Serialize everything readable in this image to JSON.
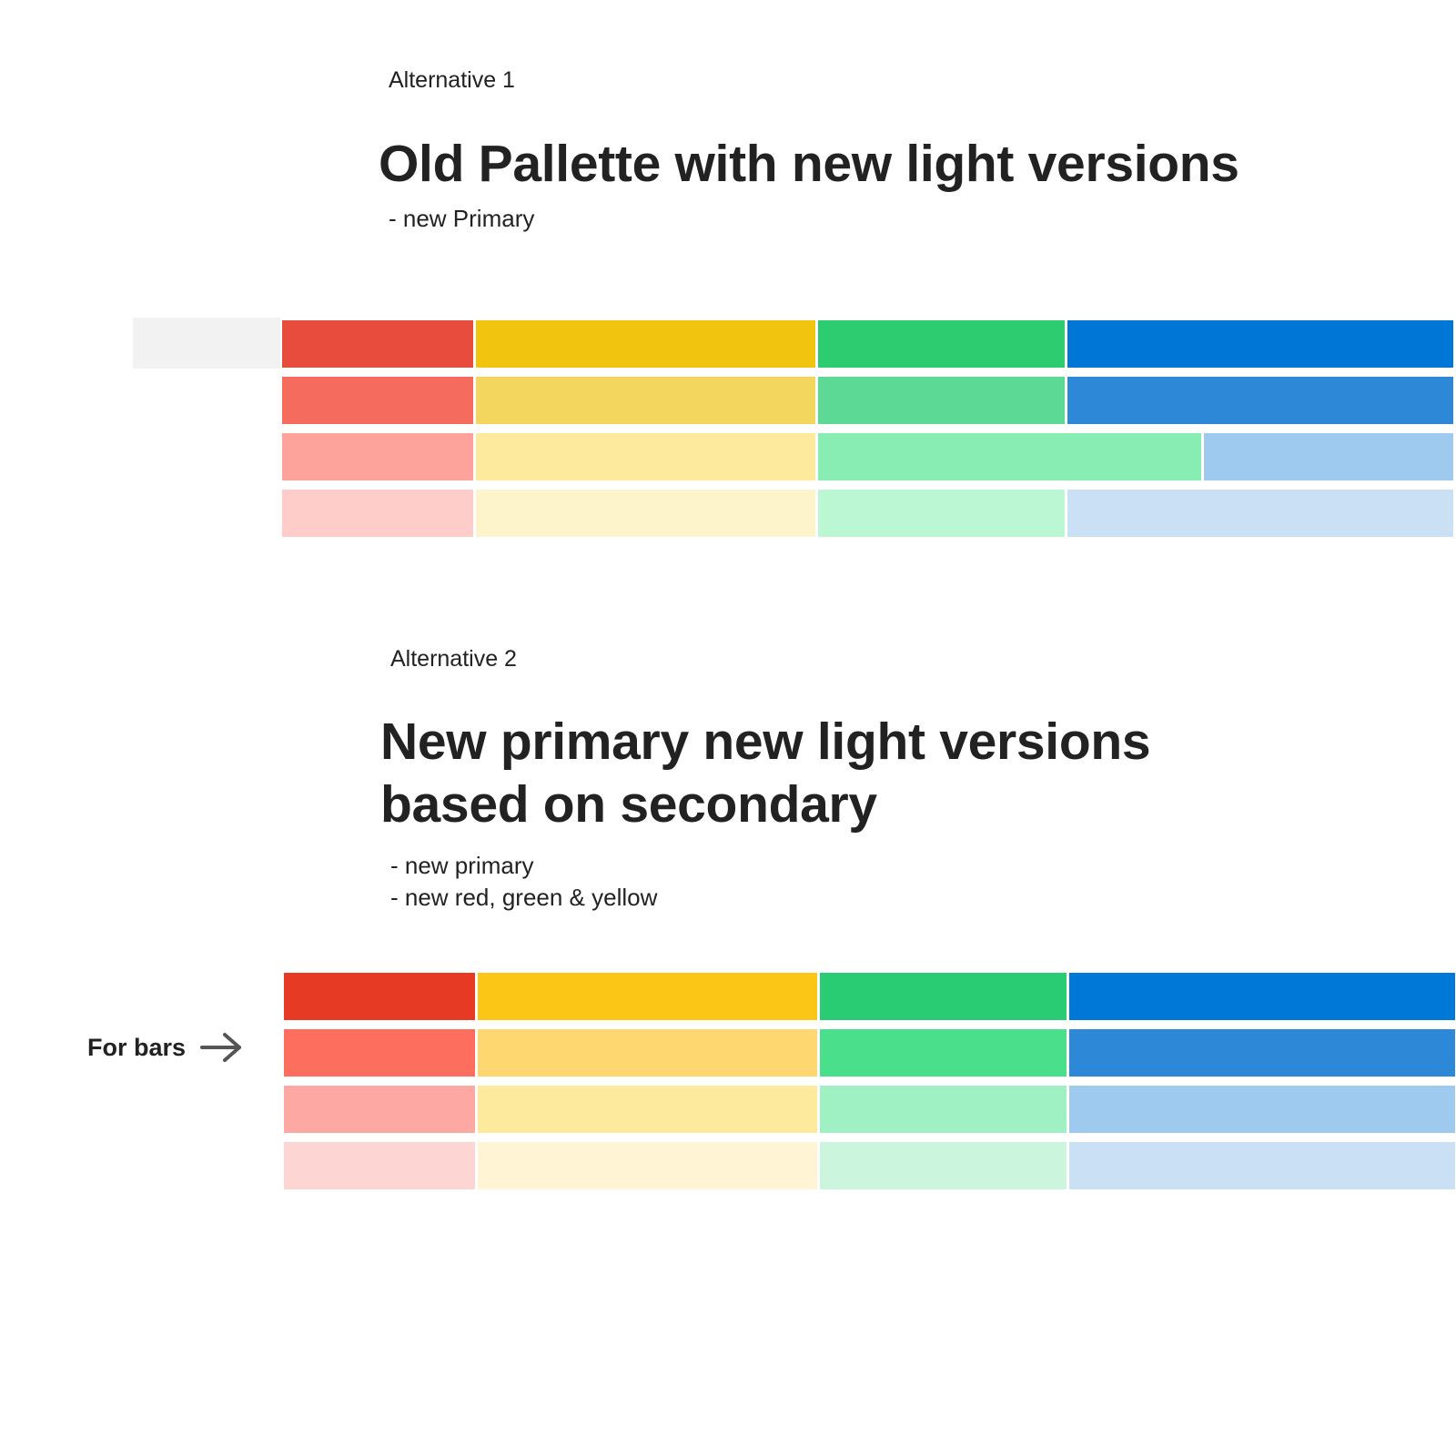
{
  "alt1": {
    "label": "Alternative 1",
    "title": "Old Pallette with new light versions",
    "notes": [
      "- new Primary"
    ]
  },
  "alt2": {
    "label": "Alternative 2",
    "title_line1": "New primary new light versions",
    "title_line2": "based on secondary",
    "notes": [
      "- new primary",
      "- new red, green & yellow"
    ]
  },
  "for_bars_label": "For bars",
  "palette1": {
    "rows": [
      [
        "#e84c3d",
        "#f1c40f",
        "#2ecc71",
        "#0077d7"
      ],
      [
        "#f56c5f",
        "#f2d65d",
        "#5cd994",
        "#2d88d8"
      ],
      [
        "#fea39b",
        "#feea9c",
        "#87edb3",
        "#9ecaf0"
      ],
      [
        "#fecdc9",
        "#fdf4cc",
        "#bbf7d3",
        "#cae0f4"
      ]
    ]
  },
  "palette2": {
    "rows": [
      [
        "#e63a25",
        "#fbc616",
        "#29cb73",
        "#0078d7"
      ],
      [
        "#fe6e5e",
        "#fed770",
        "#4adf8b",
        "#2d89d8"
      ],
      [
        "#fda8a2",
        "#feea9c",
        "#9ff0c2",
        "#9ecaf0"
      ],
      [
        "#fdd5d2",
        "#fff5d4",
        "#ccf5de",
        "#cae0f4"
      ]
    ]
  }
}
